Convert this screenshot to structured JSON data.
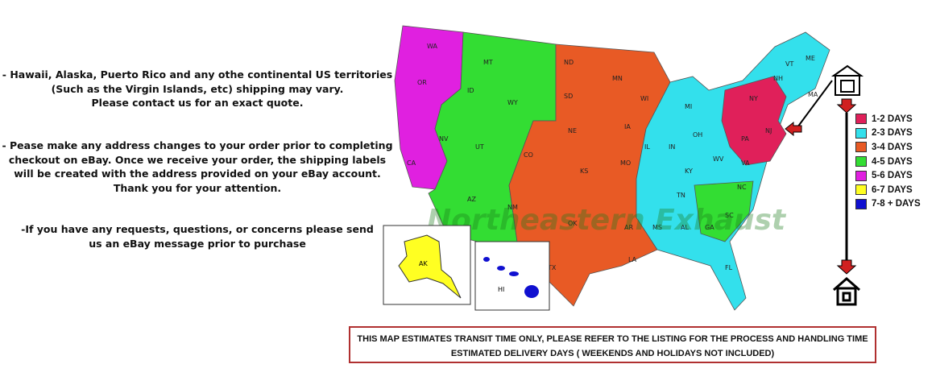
{
  "notes": {
    "territories": [
      "- Hawaii, Alaska, Puerto Rico and any othe continental US territories",
      "(Such as the Virgin Islands, etc) shipping may vary.",
      "Please contact us for an exact quote."
    ],
    "address": [
      "- Pease make any address changes to your order prior to completing",
      "checkout on eBay. Once we receive your order, the shipping labels",
      "will be created with the address provided on your eBay account.",
      "Thank you for your attention."
    ],
    "requests": [
      "-If you have any requests, questions, or concerns please send",
      "us an eBay message prior to purchase"
    ]
  },
  "map": {
    "watermark": "Northeastern Exhaust",
    "zones": [
      {
        "days": "5-6 DAYS",
        "color": "#e020e0",
        "states": [
          "WA",
          "OR",
          "CA"
        ]
      },
      {
        "days": "4-5 DAYS",
        "color": "#33dd33",
        "states": [
          "MT",
          "ID",
          "WY",
          "NV",
          "UT",
          "AZ",
          "NM"
        ]
      },
      {
        "days": "3-4 DAYS",
        "color": "#e85a25",
        "states": [
          "ND",
          "SD",
          "MN",
          "NE",
          "IA",
          "WI",
          "CO",
          "KS",
          "MO",
          "OK",
          "TX",
          "AR",
          "LA"
        ]
      },
      {
        "days": "2-3 DAYS",
        "color": "#33e0ec",
        "states": [
          "MI",
          "IL",
          "IN",
          "OH",
          "KY",
          "TN",
          "MS",
          "AL",
          "GA",
          "FL",
          "SC",
          "NC",
          "WV",
          "VT",
          "NH",
          "ME"
        ]
      },
      {
        "days": "1-2 DAYS",
        "color": "#e0205a",
        "states": [
          "NY",
          "PA",
          "NJ",
          "MD",
          "VA",
          "MA"
        ]
      },
      {
        "days": "6-7 DAYS",
        "color": "#ffff22",
        "states": [
          "AK"
        ]
      },
      {
        "days": "7-8 + DAYS",
        "color": "#1010d0",
        "states": [
          "HI"
        ]
      }
    ]
  },
  "legend": {
    "items": [
      {
        "label": "1-2 DAYS",
        "color": "#e0205a"
      },
      {
        "label": "2-3 DAYS",
        "color": "#33e0ec"
      },
      {
        "label": "3-4 DAYS",
        "color": "#e85a25"
      },
      {
        "label": "4-5 DAYS",
        "color": "#33dd33"
      },
      {
        "label": "5-6 DAYS",
        "color": "#e020e0"
      },
      {
        "label": "6-7 DAYS",
        "color": "#ffff22"
      },
      {
        "label": "7-8 + DAYS",
        "color": "#1010d0"
      }
    ],
    "origin_icon": "warehouse-icon",
    "destination_icon": "house-icon",
    "arrow_color": "#d02020"
  },
  "notice": {
    "line1": "THIS MAP ESTIMATES TRANSIT TIME ONLY, PLEASE REFER TO THE LISTING FOR THE PROCESS AND HANDLING TIME",
    "line2": "ESTIMATED DELIVERY DAYS ( WEEKENDS AND HOLIDAYS NOT INCLUDED)"
  }
}
